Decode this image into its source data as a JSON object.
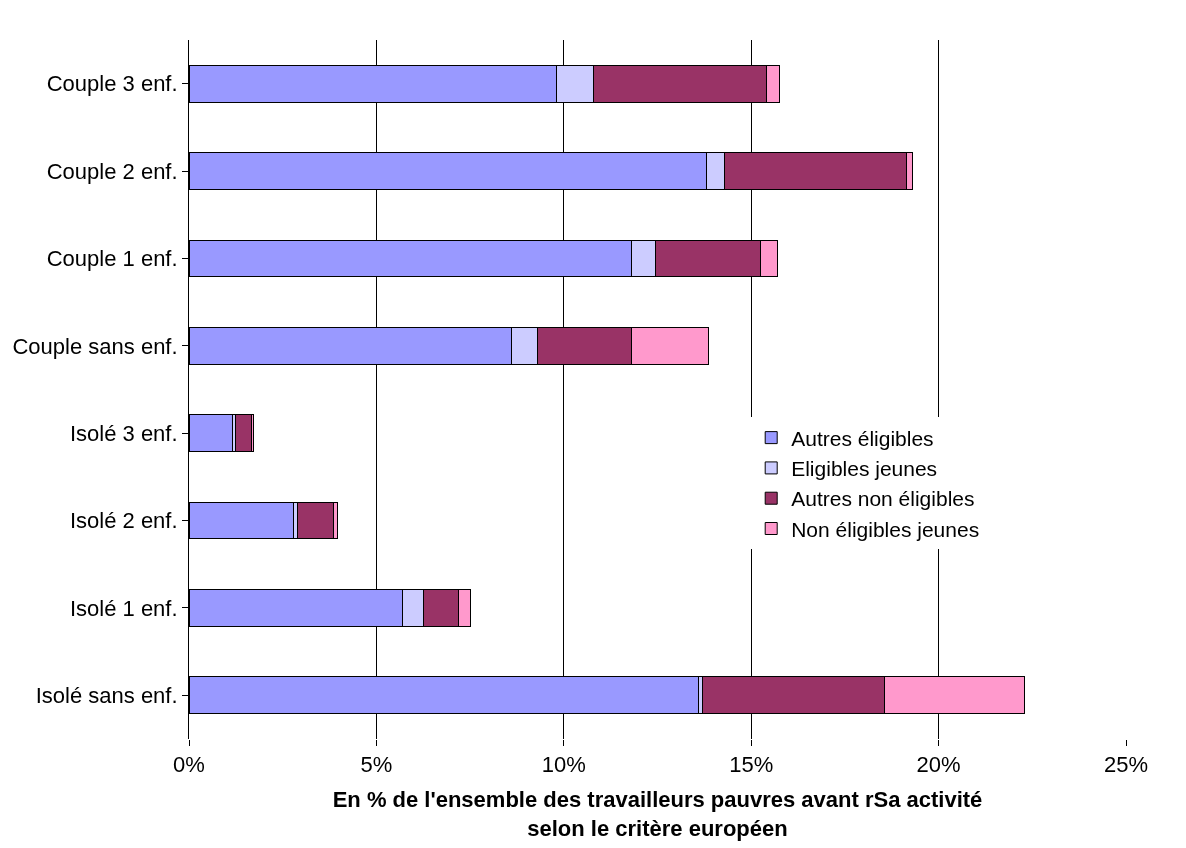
{
  "chart_data": {
    "type": "bar",
    "orientation": "horizontal",
    "stacked": true,
    "categories": [
      "Couple 3 enf.",
      "Couple 2 enf.",
      "Couple 1 enf.",
      "Couple sans enf.",
      "Isolé 3 enf.",
      "Isolé 2 enf.",
      "Isolé 1 enf.",
      "Isolé sans enf."
    ],
    "series": [
      {
        "name": "Autres éligibles",
        "color": "#9999ff",
        "values": [
          9.8,
          13.8,
          11.8,
          8.6,
          1.15,
          2.8,
          5.7,
          13.6
        ]
      },
      {
        "name": "Eligibles jeunes",
        "color": "#ccccff",
        "values": [
          1.0,
          0.5,
          0.65,
          0.7,
          0.08,
          0.1,
          0.55,
          0.1
        ]
      },
      {
        "name": "Autres non éligibles",
        "color": "#993366",
        "values": [
          4.6,
          4.85,
          2.8,
          2.5,
          0.45,
          0.95,
          0.95,
          4.85
        ]
      },
      {
        "name": "Non éligibles jeunes",
        "color": "#ff99cc",
        "values": [
          0.35,
          0.15,
          0.45,
          2.05,
          0.05,
          0.1,
          0.3,
          3.75
        ]
      }
    ],
    "xlim": [
      0,
      25
    ],
    "xticks": [
      {
        "value": 0,
        "label": "0%"
      },
      {
        "value": 5,
        "label": "5%"
      },
      {
        "value": 10,
        "label": "10%"
      },
      {
        "value": 15,
        "label": "15%"
      },
      {
        "value": 20,
        "label": "20%"
      },
      {
        "value": 25,
        "label": "25%"
      }
    ],
    "xlabel": "En % de l'ensemble des travailleurs pauvres avant rSa activité\nselon le critère européen",
    "grid": "x",
    "legend": "right"
  }
}
